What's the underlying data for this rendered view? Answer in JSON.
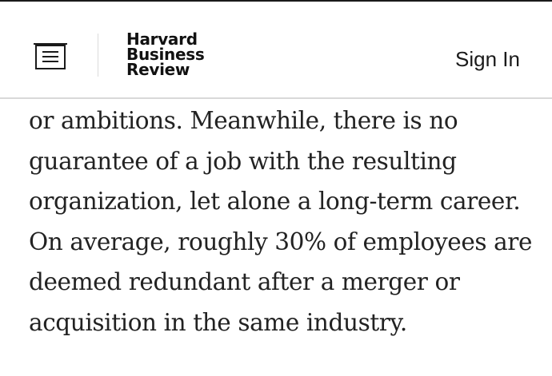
{
  "header": {
    "menu_icon": "menu-list-icon",
    "logo_lines": [
      "Harvard",
      "Business",
      "Review"
    ],
    "sign_in_label": "Sign In"
  },
  "article": {
    "lines": [
      "or ambitions. Meanwhile, there is no",
      "guarantee of a job with the resulting",
      "organization, let alone a long-term career.",
      "On average, roughly 30% of employees are",
      "deemed redundant after a merger or",
      "acquisition in the same industry."
    ]
  },
  "colors": {
    "text": "#222222",
    "header_border": "#d9d9d9",
    "top_border": "#1a1a1a",
    "background": "#ffffff"
  }
}
